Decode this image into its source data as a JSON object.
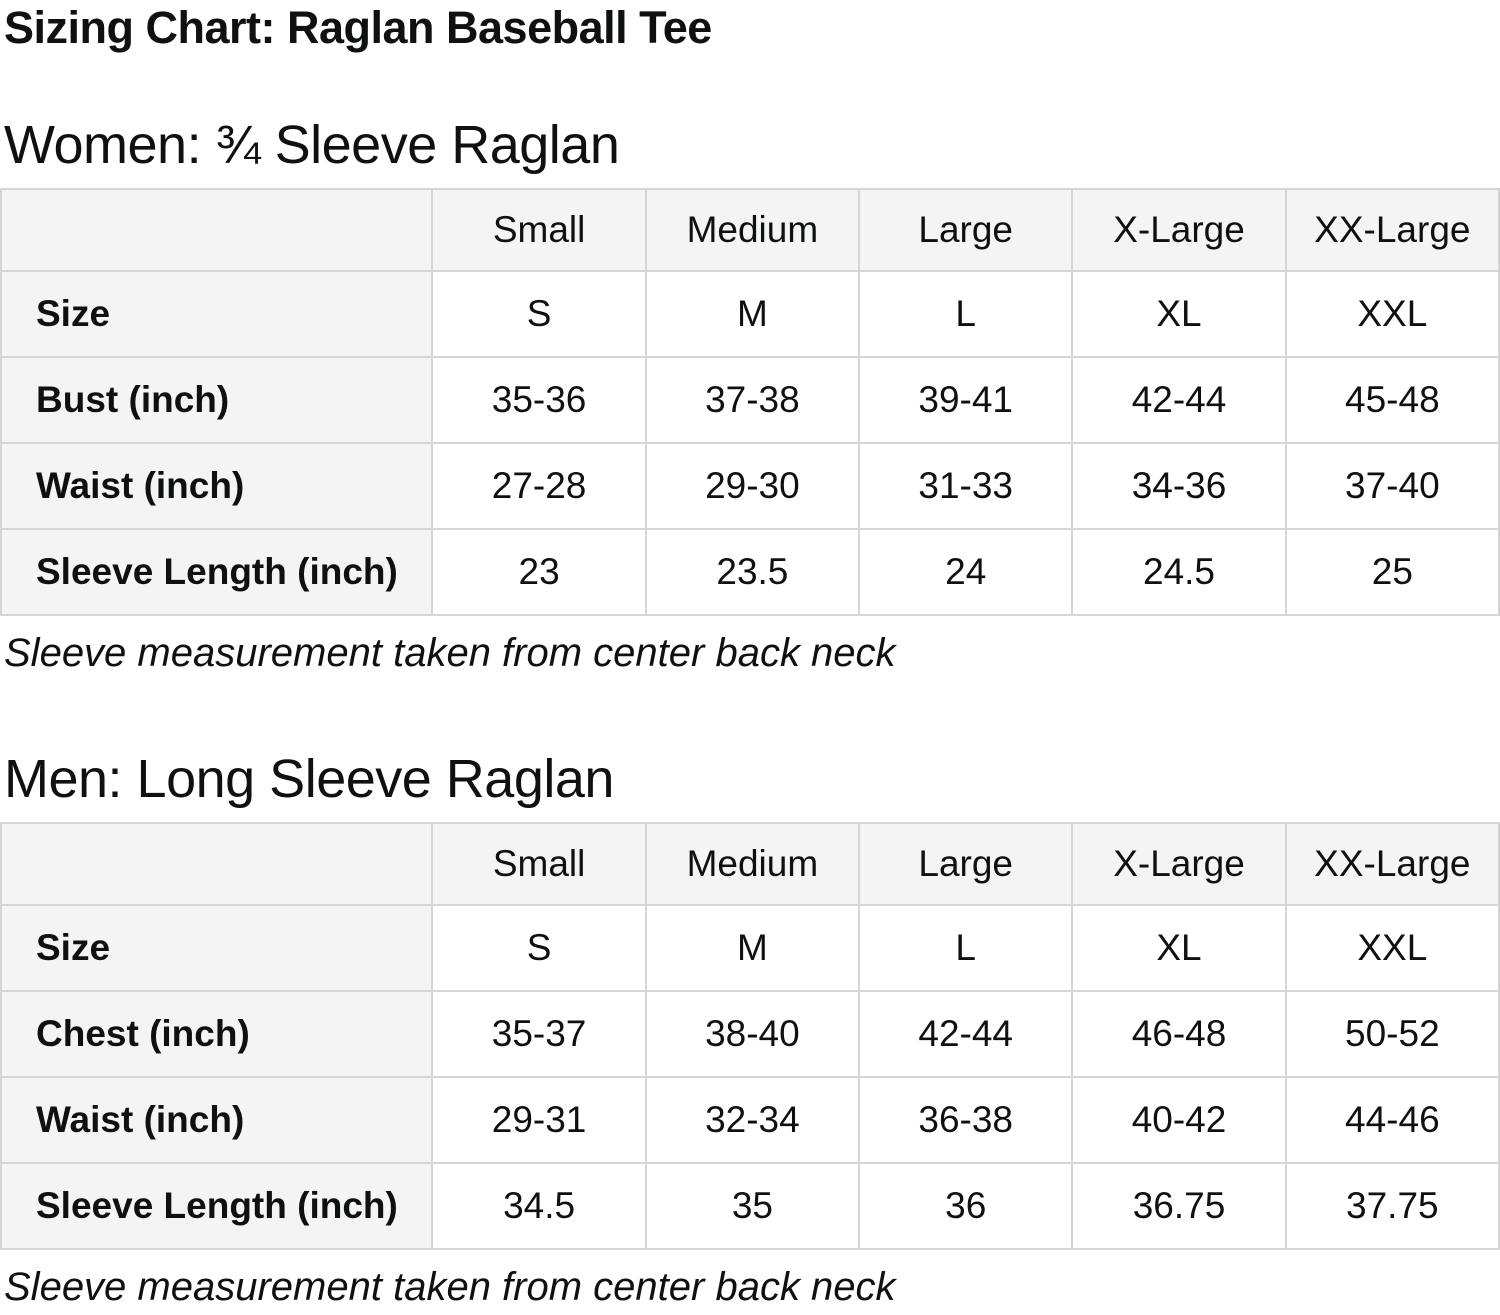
{
  "page": {
    "title": "Sizing Chart: Raglan Baseball Tee"
  },
  "colors": {
    "text": "#0f1111",
    "header_cell_background": "#f4f4f4",
    "table_border": "#d5d5d5",
    "page_background": "#ffffff"
  },
  "sections": [
    {
      "heading": "Women: ¾ Sleeve Raglan",
      "note": "Sleeve measurement taken from center back neck",
      "table": {
        "column_headers": [
          "",
          "Small",
          "Medium",
          "Large",
          "X-Large",
          "XX-Large"
        ],
        "rows": [
          {
            "label": "Size",
            "values": [
              "S",
              "M",
              "L",
              "XL",
              "XXL"
            ]
          },
          {
            "label": "Bust (inch)",
            "values": [
              "35-36",
              "37-38",
              "39-41",
              "42-44",
              "45-48"
            ]
          },
          {
            "label": "Waist (inch)",
            "values": [
              "27-28",
              "29-30",
              "31-33",
              "34-36",
              "37-40"
            ]
          },
          {
            "label": "Sleeve Length (inch)",
            "values": [
              "23",
              "23.5",
              "24",
              "24.5",
              "25"
            ]
          }
        ]
      }
    },
    {
      "heading": "Men: Long Sleeve Raglan",
      "note": "Sleeve measurement taken from center back neck",
      "table": {
        "column_headers": [
          "",
          "Small",
          "Medium",
          "Large",
          "X-Large",
          "XX-Large"
        ],
        "rows": [
          {
            "label": "Size",
            "values": [
              "S",
              "M",
              "L",
              "XL",
              "XXL"
            ]
          },
          {
            "label": "Chest (inch)",
            "values": [
              "35-37",
              "38-40",
              "42-44",
              "46-48",
              "50-52"
            ]
          },
          {
            "label": "Waist (inch)",
            "values": [
              "29-31",
              "32-34",
              "36-38",
              "40-42",
              "44-46"
            ]
          },
          {
            "label": "Sleeve Length (inch)",
            "values": [
              "34.5",
              "35",
              "36",
              "36.75",
              "37.75"
            ]
          }
        ]
      }
    }
  ]
}
